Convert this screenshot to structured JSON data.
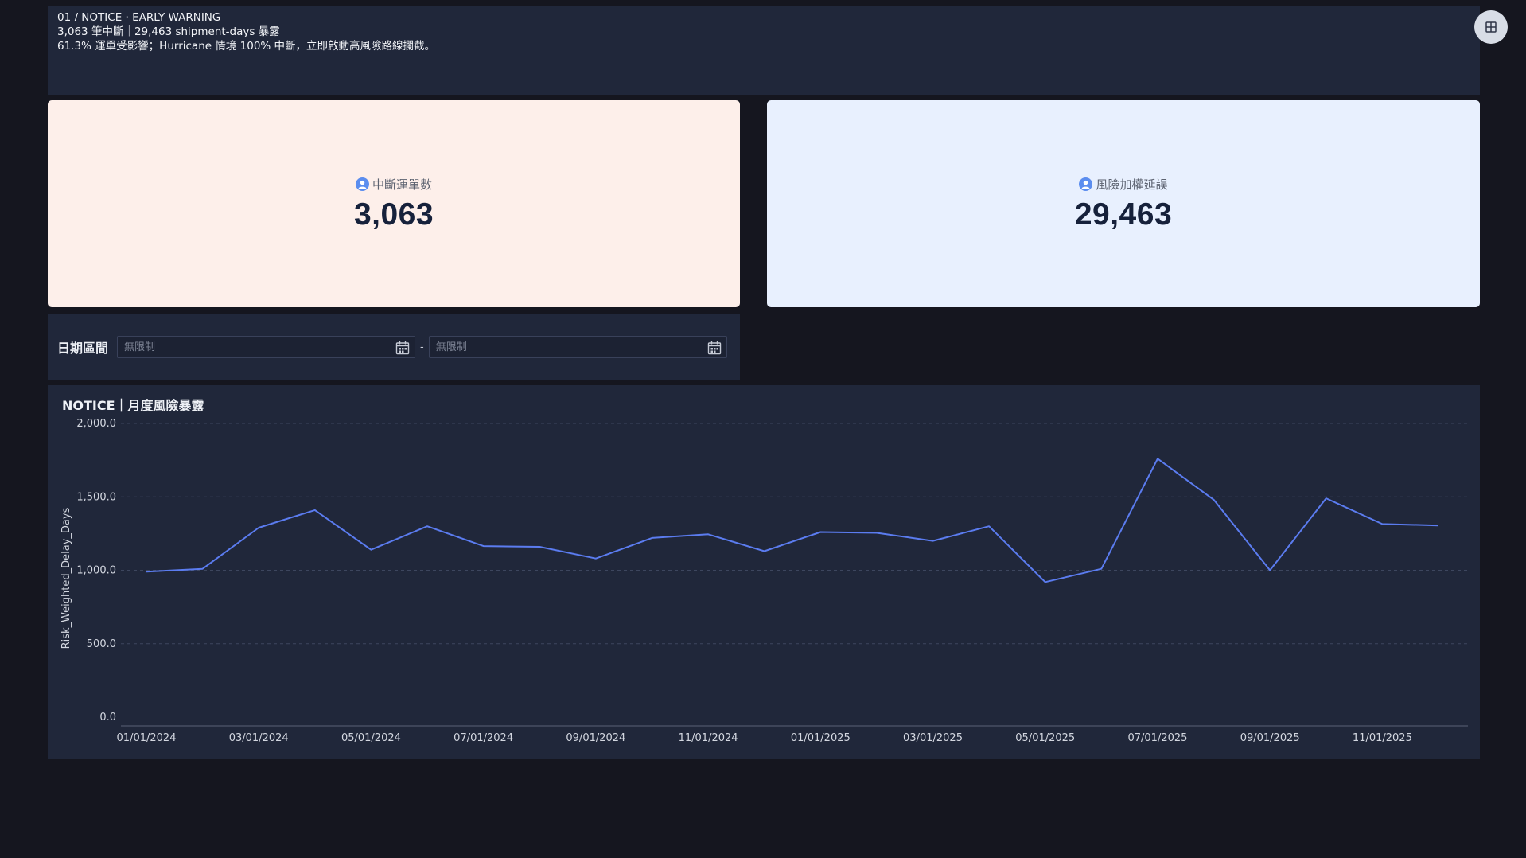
{
  "banner": {
    "line1": "01 / NOTICE · EARLY WARNING",
    "line2": "3,063 筆中斷｜29,463 shipment-days 暴露",
    "line3": "61.3% 運單受影響；Hurricane 情境 100% 中斷，立即啟動高風險路線攔截。"
  },
  "corner_button": {
    "icon": "grid-table-icon"
  },
  "kpis": [
    {
      "label": "中斷運單數",
      "value": "3,063",
      "icon": "user-circle-icon",
      "background": "#fdefea"
    },
    {
      "label": "風險加權延誤",
      "value": "29,463",
      "icon": "user-circle-icon",
      "background": "#e8f0fe"
    }
  ],
  "filter": {
    "label": "日期區間",
    "start_placeholder": "無限制",
    "end_placeholder": "無限制",
    "separator": "-",
    "icon": "calendar-icon"
  },
  "chart": {
    "title": "NOTICE｜月度風險暴露"
  },
  "chart_data": {
    "type": "line",
    "title": "NOTICE｜月度風險暴露",
    "xlabel": "",
    "ylabel": "Risk_Weighted_Delay_Days",
    "ylim": [
      0,
      2000
    ],
    "yticks": [
      "0.0",
      "500.0",
      "1,000.0",
      "1,500.0",
      "2,000.0"
    ],
    "xtick_labels": [
      "01/01/2024",
      "03/01/2024",
      "05/01/2024",
      "07/01/2024",
      "09/01/2024",
      "11/01/2024",
      "01/01/2025",
      "03/01/2025",
      "05/01/2025",
      "07/01/2025",
      "09/01/2025",
      "11/01/2025"
    ],
    "grid": true,
    "line_color": "#5b7cf0",
    "series": [
      {
        "x": [
          "2024-01",
          "2024-02",
          "2024-03",
          "2024-04",
          "2024-05",
          "2024-06",
          "2024-07",
          "2024-08",
          "2024-09",
          "2024-10",
          "2024-11",
          "2024-12",
          "2025-01",
          "2025-02",
          "2025-03",
          "2025-04",
          "2025-05",
          "2025-06",
          "2025-07",
          "2025-08",
          "2025-09",
          "2025-10",
          "2025-11",
          "2025-12"
        ],
        "values": [
          990,
          1010,
          1290,
          1410,
          1140,
          1300,
          1165,
          1160,
          1080,
          1220,
          1245,
          1130,
          1260,
          1255,
          1200,
          1300,
          920,
          1010,
          1760,
          1480,
          1000,
          1490,
          1315,
          1305
        ]
      }
    ]
  }
}
